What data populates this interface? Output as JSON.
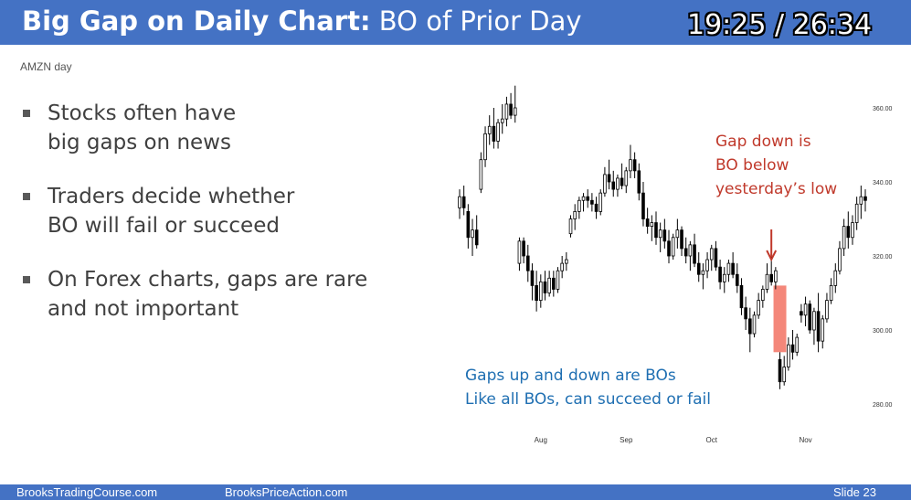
{
  "header": {
    "title_bold": "Big Gap on Daily Chart:",
    "title_rest": "BO of Prior Day",
    "timer": "19:25 / 26:34"
  },
  "chart_symbol": "AMZN day",
  "bullets": [
    {
      "lines": [
        "Stocks often have",
        "big gaps on news"
      ]
    },
    {
      "lines": [
        "Traders decide whether",
        "BO will fail or succeed"
      ]
    },
    {
      "lines": [
        "On Forex charts, gaps are rare",
        "and not important"
      ]
    }
  ],
  "annotations": {
    "gap_down_lines": [
      "Gap down is",
      "BO below",
      "yesterday’s low"
    ],
    "gaps_note_lines": [
      "Gaps up and down are BOs",
      "Like all BOs, can succeed or fail"
    ]
  },
  "colors": {
    "header": "#4472c4",
    "gap_down_text": "#c0392b",
    "gaps_note_text": "#1f6fb2",
    "gap_box": "#f4877a",
    "candle": "#000000"
  },
  "footer": {
    "left": "BrooksTradingCourse.com",
    "middle": "BrooksPriceAction.com",
    "slide": "Slide  23"
  },
  "chart_data": {
    "type": "candlestick",
    "symbol": "AMZN day",
    "ylim": [
      275,
      366
    ],
    "yticks": [
      {
        "value": 360,
        "label": "360.00"
      },
      {
        "value": 340,
        "label": "340.00"
      },
      {
        "value": 320,
        "label": "320.00"
      },
      {
        "value": 300,
        "label": "300.00"
      },
      {
        "value": 280,
        "label": "280.00"
      }
    ],
    "xticks": [
      {
        "index": 19,
        "label": "Aug"
      },
      {
        "index": 39,
        "label": "Sep"
      },
      {
        "index": 59,
        "label": "Oct"
      },
      {
        "index": 81,
        "label": "Nov"
      }
    ],
    "gap_box": {
      "index": 75,
      "high": 312,
      "low": 294
    },
    "arrow_index": 73,
    "candles": [
      {
        "o": 333,
        "h": 338,
        "l": 330,
        "c": 336
      },
      {
        "o": 336,
        "h": 339,
        "l": 331,
        "c": 333
      },
      {
        "o": 332,
        "h": 334,
        "l": 322,
        "c": 325
      },
      {
        "o": 325,
        "h": 330,
        "l": 320,
        "c": 327
      },
      {
        "o": 327,
        "h": 331,
        "l": 322,
        "c": 323
      },
      {
        "o": 338,
        "h": 348,
        "l": 337,
        "c": 346
      },
      {
        "o": 346,
        "h": 355,
        "l": 344,
        "c": 353
      },
      {
        "o": 353,
        "h": 358,
        "l": 350,
        "c": 355
      },
      {
        "o": 355,
        "h": 360,
        "l": 349,
        "c": 351
      },
      {
        "o": 351,
        "h": 357,
        "l": 349,
        "c": 356
      },
      {
        "o": 356,
        "h": 361,
        "l": 353,
        "c": 357
      },
      {
        "o": 357,
        "h": 363,
        "l": 355,
        "c": 361
      },
      {
        "o": 361,
        "h": 364,
        "l": 357,
        "c": 358
      },
      {
        "o": 358,
        "h": 366,
        "l": 356,
        "c": 360
      },
      {
        "o": 318,
        "h": 325,
        "l": 316,
        "c": 324
      },
      {
        "o": 324,
        "h": 325,
        "l": 318,
        "c": 320
      },
      {
        "o": 320,
        "h": 323,
        "l": 313,
        "c": 316
      },
      {
        "o": 316,
        "h": 318,
        "l": 308,
        "c": 312
      },
      {
        "o": 312,
        "h": 316,
        "l": 305,
        "c": 308
      },
      {
        "o": 308,
        "h": 315,
        "l": 306,
        "c": 313
      },
      {
        "o": 313,
        "h": 316,
        "l": 308,
        "c": 310
      },
      {
        "o": 310,
        "h": 316,
        "l": 309,
        "c": 314
      },
      {
        "o": 314,
        "h": 316,
        "l": 309,
        "c": 311
      },
      {
        "o": 311,
        "h": 317,
        "l": 310,
        "c": 316
      },
      {
        "o": 316,
        "h": 320,
        "l": 314,
        "c": 318
      },
      {
        "o": 318,
        "h": 321,
        "l": 316,
        "c": 319
      },
      {
        "o": 326,
        "h": 331,
        "l": 325,
        "c": 330
      },
      {
        "o": 330,
        "h": 334,
        "l": 327,
        "c": 332
      },
      {
        "o": 332,
        "h": 336,
        "l": 330,
        "c": 335
      },
      {
        "o": 335,
        "h": 337,
        "l": 332,
        "c": 336
      },
      {
        "o": 336,
        "h": 338,
        "l": 333,
        "c": 335
      },
      {
        "o": 335,
        "h": 337,
        "l": 332,
        "c": 334
      },
      {
        "o": 334,
        "h": 336,
        "l": 330,
        "c": 332
      },
      {
        "o": 332,
        "h": 338,
        "l": 331,
        "c": 337
      },
      {
        "o": 337,
        "h": 344,
        "l": 336,
        "c": 342
      },
      {
        "o": 342,
        "h": 346,
        "l": 338,
        "c": 340
      },
      {
        "o": 340,
        "h": 343,
        "l": 336,
        "c": 338
      },
      {
        "o": 338,
        "h": 342,
        "l": 336,
        "c": 341
      },
      {
        "o": 341,
        "h": 345,
        "l": 338,
        "c": 339
      },
      {
        "o": 339,
        "h": 344,
        "l": 337,
        "c": 343
      },
      {
        "o": 343,
        "h": 350,
        "l": 341,
        "c": 346
      },
      {
        "o": 346,
        "h": 348,
        "l": 341,
        "c": 343
      },
      {
        "o": 343,
        "h": 345,
        "l": 335,
        "c": 337
      },
      {
        "o": 337,
        "h": 340,
        "l": 328,
        "c": 330
      },
      {
        "o": 330,
        "h": 333,
        "l": 326,
        "c": 328
      },
      {
        "o": 328,
        "h": 331,
        "l": 324,
        "c": 329
      },
      {
        "o": 329,
        "h": 332,
        "l": 323,
        "c": 325
      },
      {
        "o": 325,
        "h": 329,
        "l": 321,
        "c": 327
      },
      {
        "o": 327,
        "h": 330,
        "l": 322,
        "c": 324
      },
      {
        "o": 324,
        "h": 327,
        "l": 318,
        "c": 320
      },
      {
        "o": 320,
        "h": 326,
        "l": 319,
        "c": 325
      },
      {
        "o": 325,
        "h": 330,
        "l": 322,
        "c": 327
      },
      {
        "o": 327,
        "h": 328,
        "l": 320,
        "c": 322
      },
      {
        "o": 322,
        "h": 325,
        "l": 318,
        "c": 320
      },
      {
        "o": 320,
        "h": 324,
        "l": 316,
        "c": 323
      },
      {
        "o": 323,
        "h": 326,
        "l": 317,
        "c": 318
      },
      {
        "o": 318,
        "h": 321,
        "l": 313,
        "c": 315
      },
      {
        "o": 315,
        "h": 318,
        "l": 311,
        "c": 316
      },
      {
        "o": 316,
        "h": 321,
        "l": 314,
        "c": 319
      },
      {
        "o": 319,
        "h": 323,
        "l": 316,
        "c": 322
      },
      {
        "o": 322,
        "h": 324,
        "l": 316,
        "c": 317
      },
      {
        "o": 317,
        "h": 319,
        "l": 311,
        "c": 313
      },
      {
        "o": 313,
        "h": 317,
        "l": 310,
        "c": 315
      },
      {
        "o": 315,
        "h": 319,
        "l": 313,
        "c": 318
      },
      {
        "o": 318,
        "h": 321,
        "l": 314,
        "c": 315
      },
      {
        "o": 315,
        "h": 318,
        "l": 310,
        "c": 312
      },
      {
        "o": 312,
        "h": 314,
        "l": 304,
        "c": 306
      },
      {
        "o": 306,
        "h": 309,
        "l": 300,
        "c": 303
      },
      {
        "o": 303,
        "h": 306,
        "l": 294,
        "c": 299
      },
      {
        "o": 299,
        "h": 305,
        "l": 298,
        "c": 304
      },
      {
        "o": 304,
        "h": 310,
        "l": 303,
        "c": 308
      },
      {
        "o": 308,
        "h": 312,
        "l": 306,
        "c": 311
      },
      {
        "o": 311,
        "h": 318,
        "l": 310,
        "c": 315
      },
      {
        "o": 315,
        "h": 320,
        "l": 312,
        "c": 313
      },
      {
        "o": 313,
        "h": 317,
        "l": 311,
        "c": 316
      },
      {
        "o": 292,
        "h": 294,
        "l": 284,
        "c": 286
      },
      {
        "o": 286,
        "h": 293,
        "l": 285,
        "c": 290
      },
      {
        "o": 290,
        "h": 298,
        "l": 289,
        "c": 296
      },
      {
        "o": 296,
        "h": 300,
        "l": 292,
        "c": 294
      },
      {
        "o": 294,
        "h": 299,
        "l": 293,
        "c": 298
      },
      {
        "o": 305,
        "h": 307,
        "l": 302,
        "c": 304
      },
      {
        "o": 304,
        "h": 309,
        "l": 301,
        "c": 307
      },
      {
        "o": 307,
        "h": 308,
        "l": 299,
        "c": 300
      },
      {
        "o": 300,
        "h": 306,
        "l": 296,
        "c": 305
      },
      {
        "o": 305,
        "h": 310,
        "l": 294,
        "c": 297
      },
      {
        "o": 297,
        "h": 304,
        "l": 295,
        "c": 303
      },
      {
        "o": 303,
        "h": 310,
        "l": 302,
        "c": 308
      },
      {
        "o": 308,
        "h": 314,
        "l": 307,
        "c": 312
      },
      {
        "o": 312,
        "h": 318,
        "l": 310,
        "c": 316
      },
      {
        "o": 316,
        "h": 324,
        "l": 315,
        "c": 322
      },
      {
        "o": 322,
        "h": 330,
        "l": 320,
        "c": 328
      },
      {
        "o": 328,
        "h": 332,
        "l": 322,
        "c": 325
      },
      {
        "o": 325,
        "h": 331,
        "l": 323,
        "c": 329
      },
      {
        "o": 329,
        "h": 336,
        "l": 327,
        "c": 334
      },
      {
        "o": 334,
        "h": 339,
        "l": 330,
        "c": 336
      },
      {
        "o": 336,
        "h": 338,
        "l": 332,
        "c": 335
      }
    ]
  }
}
